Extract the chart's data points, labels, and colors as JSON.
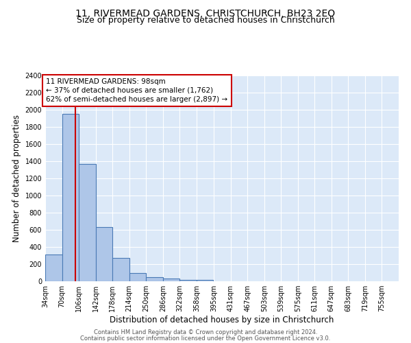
{
  "title": "11, RIVERMEAD GARDENS, CHRISTCHURCH, BH23 2EQ",
  "subtitle": "Size of property relative to detached houses in Christchurch",
  "xlabel": "Distribution of detached houses by size in Christchurch",
  "ylabel": "Number of detached properties",
  "footnote1": "Contains HM Land Registry data © Crown copyright and database right 2024.",
  "footnote2": "Contains public sector information licensed under the Open Government Licence v3.0.",
  "bar_edges": [
    34,
    70,
    106,
    142,
    178,
    214,
    250,
    286,
    322,
    358,
    395,
    431,
    467,
    503,
    539,
    575,
    611,
    647,
    683,
    719,
    755
  ],
  "bar_heights": [
    310,
    1950,
    1370,
    630,
    270,
    95,
    45,
    30,
    20,
    15,
    0,
    0,
    0,
    0,
    0,
    0,
    0,
    0,
    0,
    0
  ],
  "bar_color": "#aec6e8",
  "bar_edge_color": "#4a7ab5",
  "bar_linewidth": 0.8,
  "red_line_x": 98,
  "annotation_line1": "11 RIVERMEAD GARDENS: 98sqm",
  "annotation_line2": "← 37% of detached houses are smaller (1,762)",
  "annotation_line3": "62% of semi-detached houses are larger (2,897) →",
  "annotation_box_color": "white",
  "annotation_box_edge_color": "#cc0000",
  "ylim": [
    0,
    2400
  ],
  "yticks": [
    0,
    200,
    400,
    600,
    800,
    1000,
    1200,
    1400,
    1600,
    1800,
    2000,
    2200,
    2400
  ],
  "xtick_labels": [
    "34sqm",
    "70sqm",
    "106sqm",
    "142sqm",
    "178sqm",
    "214sqm",
    "250sqm",
    "286sqm",
    "322sqm",
    "358sqm",
    "395sqm",
    "431sqm",
    "467sqm",
    "503sqm",
    "539sqm",
    "575sqm",
    "611sqm",
    "647sqm",
    "683sqm",
    "719sqm",
    "755sqm"
  ],
  "bg_color": "#dce9f8",
  "grid_color": "#ffffff",
  "title_fontsize": 10,
  "subtitle_fontsize": 9,
  "axis_label_fontsize": 8.5,
  "tick_fontsize": 7,
  "annotation_fontsize": 7.5,
  "footnote_fontsize": 6,
  "footnote_color": "#555555"
}
